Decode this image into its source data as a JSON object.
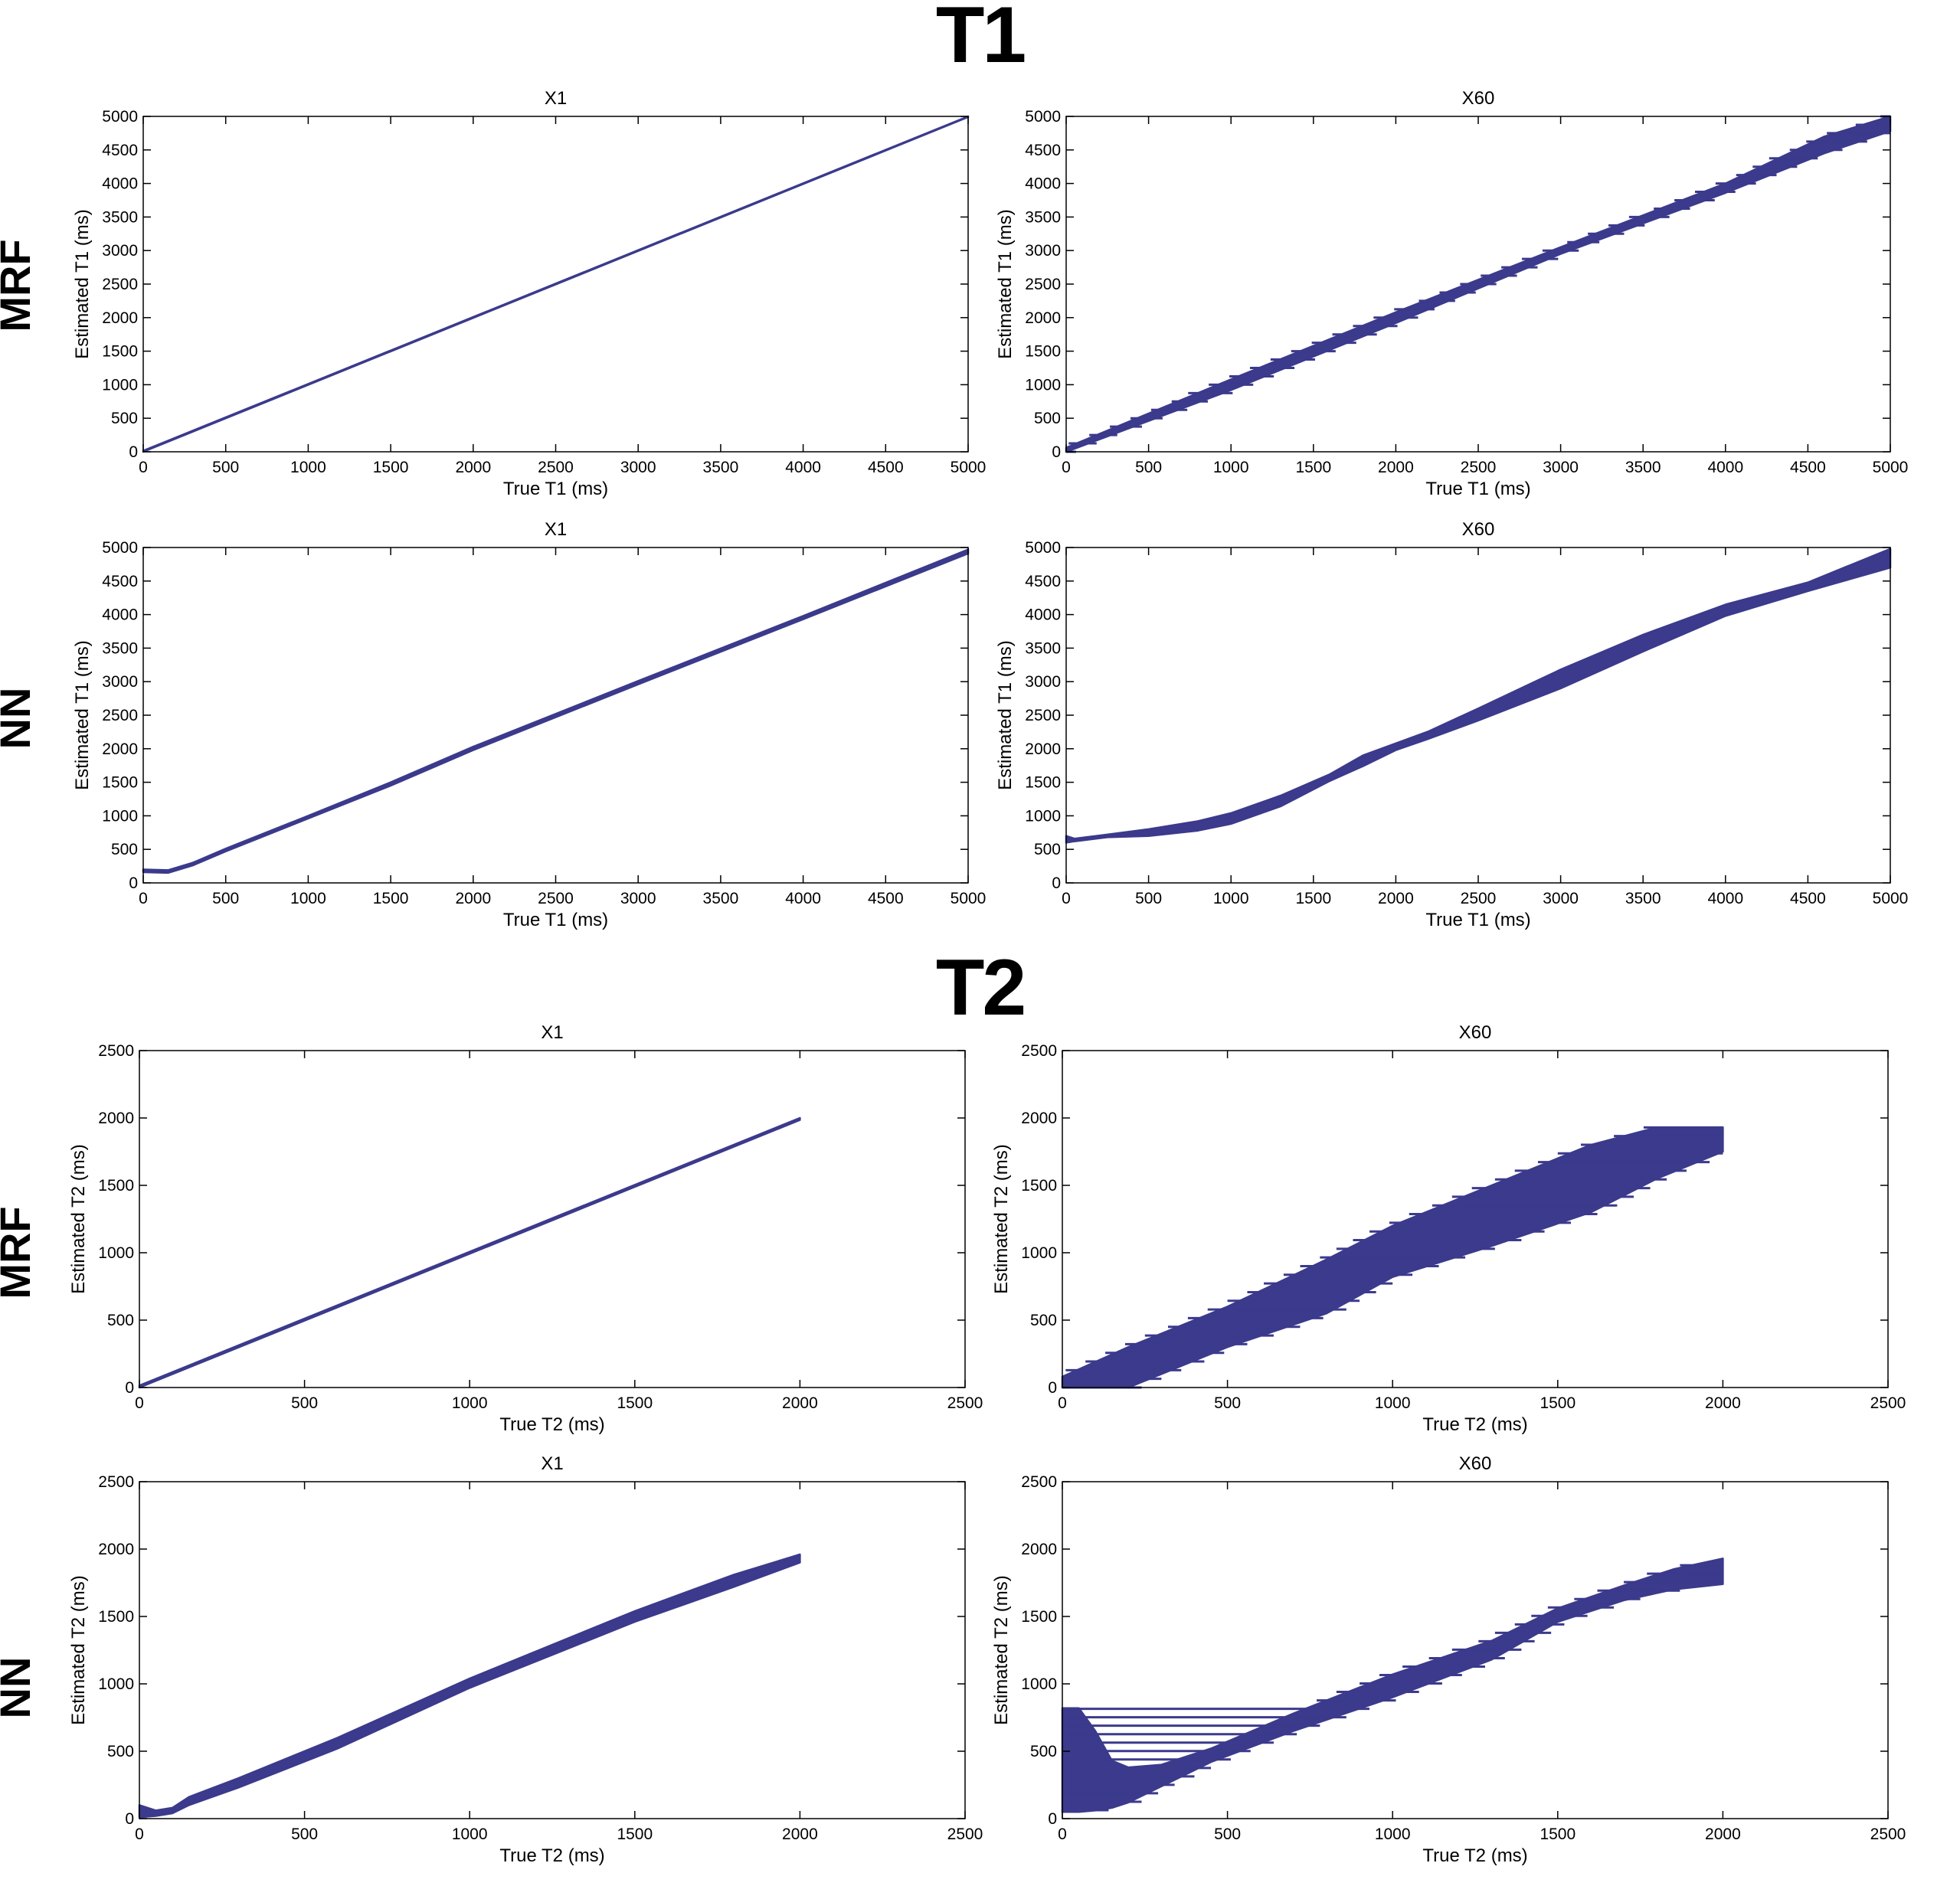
{
  "figure": {
    "sections": [
      {
        "id": "t1",
        "title": "T1"
      },
      {
        "id": "t2",
        "title": "T2"
      }
    ],
    "row_labels": [
      "MRF",
      "NN",
      "MRF",
      "NN"
    ],
    "series_color": "#3b3a8c",
    "axis_color": "#000000"
  },
  "chart_data": [
    {
      "type": "line",
      "section": "T1",
      "method": "MRF",
      "title": "X1",
      "xlabel": "True T1 (ms)",
      "ylabel": "Estimated T1 (ms)",
      "xlim": [
        0,
        5000
      ],
      "ylim": [
        0,
        5000
      ],
      "xticks": [
        0,
        500,
        1000,
        1500,
        2000,
        2500,
        3000,
        3500,
        4000,
        4500,
        5000
      ],
      "yticks": [
        0,
        500,
        1000,
        1500,
        2000,
        2500,
        3000,
        3500,
        4000,
        4500,
        5000
      ],
      "grid": false,
      "band": {
        "x": [
          0,
          5000
        ],
        "lower": [
          0,
          4990
        ],
        "upper": [
          15,
          5000
        ]
      }
    },
    {
      "type": "scatter",
      "section": "T1",
      "method": "MRF",
      "title": "X60",
      "xlabel": "True T1 (ms)",
      "ylabel": "Estimated T1 (ms)",
      "xlim": [
        0,
        5000
      ],
      "ylim": [
        0,
        5000
      ],
      "xticks": [
        0,
        500,
        1000,
        1500,
        2000,
        2500,
        3000,
        3500,
        4000,
        4500,
        5000
      ],
      "yticks": [
        0,
        500,
        1000,
        1500,
        2000,
        2500,
        3000,
        3500,
        4000,
        4500,
        5000
      ],
      "grid": false,
      "band": {
        "x": [
          0,
          1000,
          2000,
          3000,
          4000,
          4600,
          5000
        ],
        "lower": [
          0,
          920,
          1920,
          2950,
          3860,
          4450,
          4780
        ],
        "upper": [
          60,
          1080,
          2080,
          3050,
          4000,
          4700,
          5000
        ]
      }
    },
    {
      "type": "line",
      "section": "T1",
      "method": "NN",
      "title": "X1",
      "xlabel": "True T1 (ms)",
      "ylabel": "Estimated T1 (ms)",
      "xlim": [
        0,
        5000
      ],
      "ylim": [
        0,
        5000
      ],
      "xticks": [
        0,
        500,
        1000,
        1500,
        2000,
        2500,
        3000,
        3500,
        4000,
        4500,
        5000
      ],
      "yticks": [
        0,
        500,
        1000,
        1500,
        2000,
        2500,
        3000,
        3500,
        4000,
        4500,
        5000
      ],
      "grid": false,
      "band": {
        "x": [
          0,
          150,
          300,
          500,
          1000,
          1500,
          2000,
          3000,
          4000,
          5000
        ],
        "lower": [
          160,
          150,
          260,
          470,
          960,
          1450,
          1980,
          2960,
          3930,
          4910
        ],
        "upper": [
          200,
          190,
          300,
          510,
          1000,
          1500,
          2030,
          3010,
          3980,
          4970
        ]
      }
    },
    {
      "type": "line",
      "section": "T1",
      "method": "NN",
      "title": "X60",
      "xlabel": "True T1 (ms)",
      "ylabel": "Estimated T1 (ms)",
      "xlim": [
        0,
        5000
      ],
      "ylim": [
        0,
        5000
      ],
      "xticks": [
        0,
        500,
        1000,
        1500,
        2000,
        2500,
        3000,
        3500,
        4000,
        4500,
        5000
      ],
      "yticks": [
        0,
        500,
        1000,
        1500,
        2000,
        2500,
        3000,
        3500,
        4000,
        4500,
        5000
      ],
      "grid": false,
      "band": {
        "x": [
          0,
          50,
          250,
          500,
          800,
          1000,
          1300,
          1600,
          1800,
          2000,
          2200,
          2500,
          3000,
          3500,
          4000,
          4500,
          5000
        ],
        "lower": [
          600,
          620,
          680,
          700,
          780,
          880,
          1140,
          1520,
          1740,
          1980,
          2150,
          2420,
          2900,
          3450,
          3980,
          4350,
          4700
        ],
        "upper": [
          700,
          660,
          720,
          800,
          920,
          1040,
          1300,
          1620,
          1900,
          2080,
          2260,
          2600,
          3180,
          3700,
          4150,
          4480,
          4980
        ]
      }
    },
    {
      "type": "scatter",
      "section": "T2",
      "method": "MRF",
      "title": "X1",
      "xlabel": "True T2 (ms)",
      "ylabel": "Estimated T2 (ms)",
      "xlim": [
        0,
        2500
      ],
      "ylim": [
        0,
        2500
      ],
      "xticks": [
        0,
        500,
        1000,
        1500,
        2000,
        2500
      ],
      "yticks": [
        0,
        500,
        1000,
        1500,
        2000,
        2500
      ],
      "grid": false,
      "band": {
        "x": [
          0,
          2000
        ],
        "lower": [
          0,
          1985
        ],
        "upper": [
          15,
          2000
        ]
      }
    },
    {
      "type": "scatter",
      "section": "T2",
      "method": "MRF",
      "title": "X60",
      "xlabel": "True T2 (ms)",
      "ylabel": "Estimated T2 (ms)",
      "xlim": [
        0,
        2500
      ],
      "ylim": [
        0,
        2500
      ],
      "xticks": [
        0,
        500,
        1000,
        1500,
        2000,
        2500
      ],
      "yticks": [
        0,
        500,
        1000,
        1500,
        2000,
        2500
      ],
      "grid": false,
      "band": {
        "x": [
          0,
          200,
          500,
          800,
          1000,
          1300,
          1600,
          1800,
          2000
        ],
        "lower": [
          0,
          0,
          300,
          550,
          820,
          1050,
          1300,
          1550,
          1750
        ],
        "upper": [
          80,
          300,
          600,
          950,
          1200,
          1500,
          1800,
          1930,
          1930
        ]
      }
    },
    {
      "type": "scatter",
      "section": "T2",
      "method": "NN",
      "title": "X1",
      "xlabel": "True T2 (ms)",
      "ylabel": "Estimated T2 (ms)",
      "xlim": [
        0,
        2500
      ],
      "ylim": [
        0,
        2500
      ],
      "xticks": [
        0,
        500,
        1000,
        1500,
        2000,
        2500
      ],
      "yticks": [
        0,
        500,
        1000,
        1500,
        2000,
        2500
      ],
      "grid": false,
      "band": {
        "x": [
          0,
          50,
          100,
          150,
          300,
          600,
          1000,
          1500,
          1800,
          2000
        ],
        "lower": [
          10,
          20,
          40,
          100,
          230,
          520,
          970,
          1460,
          1720,
          1900
        ],
        "upper": [
          100,
          60,
          80,
          160,
          300,
          600,
          1040,
          1540,
          1810,
          1960
        ]
      }
    },
    {
      "type": "scatter",
      "section": "T2",
      "method": "NN",
      "title": "X60",
      "xlabel": "True T2 (ms)",
      "ylabel": "Estimated T2 (ms)",
      "xlim": [
        0,
        2500
      ],
      "ylim": [
        0,
        2500
      ],
      "xticks": [
        0,
        500,
        1000,
        1500,
        2000,
        2500
      ],
      "yticks": [
        0,
        500,
        1000,
        1500,
        2000,
        2500
      ],
      "grid": false,
      "band": {
        "x": [
          0,
          50,
          100,
          150,
          200,
          300,
          450,
          700,
          1000,
          1300,
          1500,
          1700,
          1850,
          2000
        ],
        "lower": [
          50,
          50,
          60,
          80,
          120,
          240,
          420,
          650,
          900,
          1180,
          1460,
          1620,
          1700,
          1740
        ],
        "upper": [
          820,
          820,
          650,
          430,
          380,
          400,
          520,
          780,
          1070,
          1320,
          1560,
          1730,
          1850,
          1930
        ]
      }
    }
  ]
}
